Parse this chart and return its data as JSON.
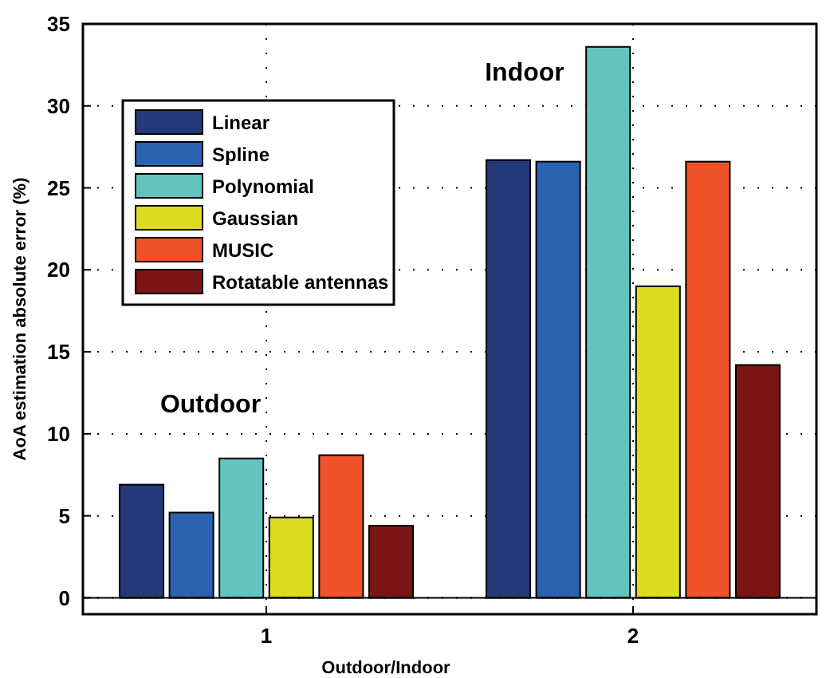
{
  "chart_data": {
    "type": "bar",
    "xlabel": "Outdoor/Indoor",
    "ylabel": "AoA estimation absolute error (%)",
    "categories": [
      "1",
      "2"
    ],
    "series": [
      {
        "name": "Linear",
        "color": "#253878",
        "values": [
          6.9,
          26.7
        ]
      },
      {
        "name": "Spline",
        "color": "#2b62b0",
        "values": [
          5.2,
          26.6
        ]
      },
      {
        "name": "Polynomial",
        "color": "#62c4bd",
        "values": [
          8.5,
          33.6
        ]
      },
      {
        "name": "Gaussian",
        "color": "#dcdc22",
        "values": [
          4.9,
          19.0
        ]
      },
      {
        "name": "MUSIC",
        "color": "#f0522a",
        "values": [
          8.7,
          26.6
        ]
      },
      {
        "name": "Rotatable antennas",
        "color": "#7b1414",
        "values": [
          4.4,
          14.2
        ]
      }
    ],
    "ylim": [
      -1,
      35
    ],
    "yticks": [
      0,
      5,
      10,
      15,
      20,
      25,
      30,
      35
    ],
    "grid": true,
    "legend": "top left",
    "annotations": [
      "Outdoor",
      "Indoor"
    ]
  }
}
